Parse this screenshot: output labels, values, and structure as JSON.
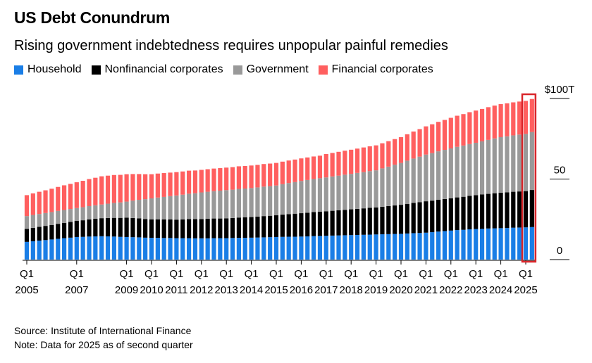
{
  "title": "US Debt Conundrum",
  "subtitle": "Rising government indebtedness requires unpopular painful remedies",
  "source": "Source: Institute of International Finance",
  "note": "Note: Data for 2025 as of second quarter",
  "chart_data": {
    "type": "bar",
    "stacked": true,
    "start_period": "2005 Q1",
    "end_period": "2025 Q2",
    "frequency": "quarterly",
    "unit": "$ trillions",
    "ylim": [
      0,
      100
    ],
    "y_ticks": [
      "$100T",
      "50",
      "0"
    ],
    "y_tick_values": [
      100,
      50,
      0
    ],
    "y_axis_side": "right",
    "grid": false,
    "legend_placement": "top",
    "x_tick_labels": [
      {
        "q": "Q1",
        "y": "2005",
        "index": 0
      },
      {
        "q": "Q1",
        "y": "2007",
        "index": 8
      },
      {
        "q": "Q1",
        "y": "2009",
        "index": 16
      },
      {
        "q": "Q1",
        "y": "2010",
        "index": 20
      },
      {
        "q": "Q1",
        "y": "2011",
        "index": 24
      },
      {
        "q": "Q1",
        "y": "2012",
        "index": 28
      },
      {
        "q": "Q1",
        "y": "2013",
        "index": 32
      },
      {
        "q": "Q1",
        "y": "2014",
        "index": 36
      },
      {
        "q": "Q1",
        "y": "2015",
        "index": 40
      },
      {
        "q": "Q1",
        "y": "2016",
        "index": 44
      },
      {
        "q": "Q1",
        "y": "2017",
        "index": 48
      },
      {
        "q": "Q1",
        "y": "2018",
        "index": 52
      },
      {
        "q": "Q1",
        "y": "2019",
        "index": 56
      },
      {
        "q": "Q1",
        "y": "2020",
        "index": 60
      },
      {
        "q": "Q1",
        "y": "2021",
        "index": 64
      },
      {
        "q": "Q1",
        "y": "2022",
        "index": 68
      },
      {
        "q": "Q1",
        "y": "2023",
        "index": 72
      },
      {
        "q": "Q1",
        "y": "2024",
        "index": 76
      },
      {
        "q": "Q1",
        "y": "2025",
        "index": 80
      }
    ],
    "highlight": {
      "from_index": 80,
      "to_index": 81,
      "color": "#d9262b"
    },
    "series": [
      {
        "name": "Household",
        "color": "#1a7ee6",
        "values": [
          11,
          11.4,
          11.8,
          12.1,
          12.5,
          12.9,
          13.3,
          13.6,
          14,
          14.1,
          14.3,
          14.4,
          14.5,
          14.4,
          14.3,
          14.1,
          14,
          13.9,
          13.8,
          13.6,
          13.5,
          13.5,
          13.4,
          13.4,
          13.3,
          13.3,
          13.3,
          13.2,
          13.2,
          13.2,
          13.3,
          13.3,
          13.3,
          13.4,
          13.5,
          13.5,
          13.6,
          13.7,
          13.8,
          13.9,
          14,
          14.1,
          14.2,
          14.2,
          14.3,
          14.4,
          14.6,
          14.7,
          14.8,
          14.9,
          15,
          15.1,
          15.2,
          15.3,
          15.4,
          15.5,
          15.6,
          15.7,
          15.8,
          15.9,
          16,
          16.2,
          16.4,
          16.5,
          16.7,
          17,
          17.4,
          17.7,
          18,
          18.3,
          18.5,
          18.8,
          19,
          19.1,
          19.3,
          19.4,
          19.5,
          19.6,
          19.8,
          19.9,
          20,
          20.2
        ]
      },
      {
        "name": "Nonfinancial corporates",
        "color": "#000000",
        "values": [
          8,
          8.3,
          8.5,
          8.8,
          9,
          9.3,
          9.5,
          9.8,
          10,
          10.3,
          10.6,
          10.9,
          11.2,
          11.4,
          11.6,
          11.8,
          12,
          11.9,
          11.8,
          11.6,
          11.5,
          11.5,
          11.5,
          11.5,
          11.5,
          11.6,
          11.8,
          11.9,
          12,
          12.1,
          12.2,
          12.2,
          12.3,
          12.4,
          12.6,
          12.7,
          12.8,
          13,
          13.2,
          13.3,
          13.5,
          13.8,
          14,
          14.3,
          14.5,
          14.7,
          14.9,
          15,
          15.2,
          15.4,
          15.6,
          15.8,
          16,
          16.2,
          16.4,
          16.6,
          16.8,
          17.1,
          17.4,
          17.7,
          18,
          18.4,
          18.8,
          19.1,
          19.5,
          19.6,
          19.8,
          19.9,
          20,
          20.3,
          20.5,
          20.8,
          21,
          21.3,
          21.5,
          21.8,
          22,
          22.1,
          22.3,
          22.4,
          22.5,
          23
        ]
      },
      {
        "name": "Government",
        "color": "#999999",
        "values": [
          8,
          8,
          8,
          8,
          8,
          8,
          8,
          8,
          8,
          8.1,
          8.3,
          8.4,
          8.5,
          8.9,
          9.3,
          9.6,
          10,
          10.8,
          11.5,
          12.3,
          13,
          13.5,
          14,
          14.5,
          15,
          15.4,
          15.8,
          16.1,
          16.5,
          16.8,
          17,
          17.3,
          17.5,
          17.6,
          17.8,
          17.9,
          18,
          18.1,
          18.3,
          18.4,
          18.5,
          18.9,
          19.3,
          19.6,
          20,
          20.3,
          20.5,
          20.8,
          21,
          21.3,
          21.5,
          21.8,
          22,
          22.3,
          22.5,
          22.8,
          23,
          23.8,
          24.5,
          25.3,
          26,
          26.8,
          27.5,
          28.3,
          29,
          29.5,
          30,
          30.5,
          31,
          31.4,
          31.8,
          32.1,
          32.5,
          33,
          33.5,
          34,
          34.5,
          34.8,
          35,
          35.3,
          35.5,
          36
        ]
      },
      {
        "name": "Financial corporates",
        "color": "#ff5f5f",
        "values": [
          13,
          13.4,
          13.8,
          14.1,
          14.5,
          14.9,
          15.3,
          15.6,
          16,
          16.4,
          16.8,
          17.1,
          17.5,
          17.4,
          17.3,
          17.1,
          17,
          16.5,
          16,
          15.5,
          15,
          14.9,
          14.8,
          14.6,
          14.5,
          14.4,
          14.3,
          14.1,
          14,
          14,
          14,
          14,
          14,
          14,
          14,
          14,
          14,
          14,
          14,
          14,
          14,
          14,
          14,
          14,
          14,
          14,
          14,
          14,
          14.5,
          14.6,
          14.8,
          14.9,
          15,
          15.1,
          15.3,
          15.4,
          15.5,
          15.6,
          15.8,
          15.9,
          16,
          16.4,
          16.8,
          17.1,
          17.5,
          17.9,
          18.3,
          18.6,
          19,
          19.3,
          19.5,
          19.8,
          20,
          20.1,
          20.3,
          20.4,
          20.5,
          20.5,
          20.5,
          20.5,
          20.5,
          20.5
        ]
      }
    ]
  }
}
